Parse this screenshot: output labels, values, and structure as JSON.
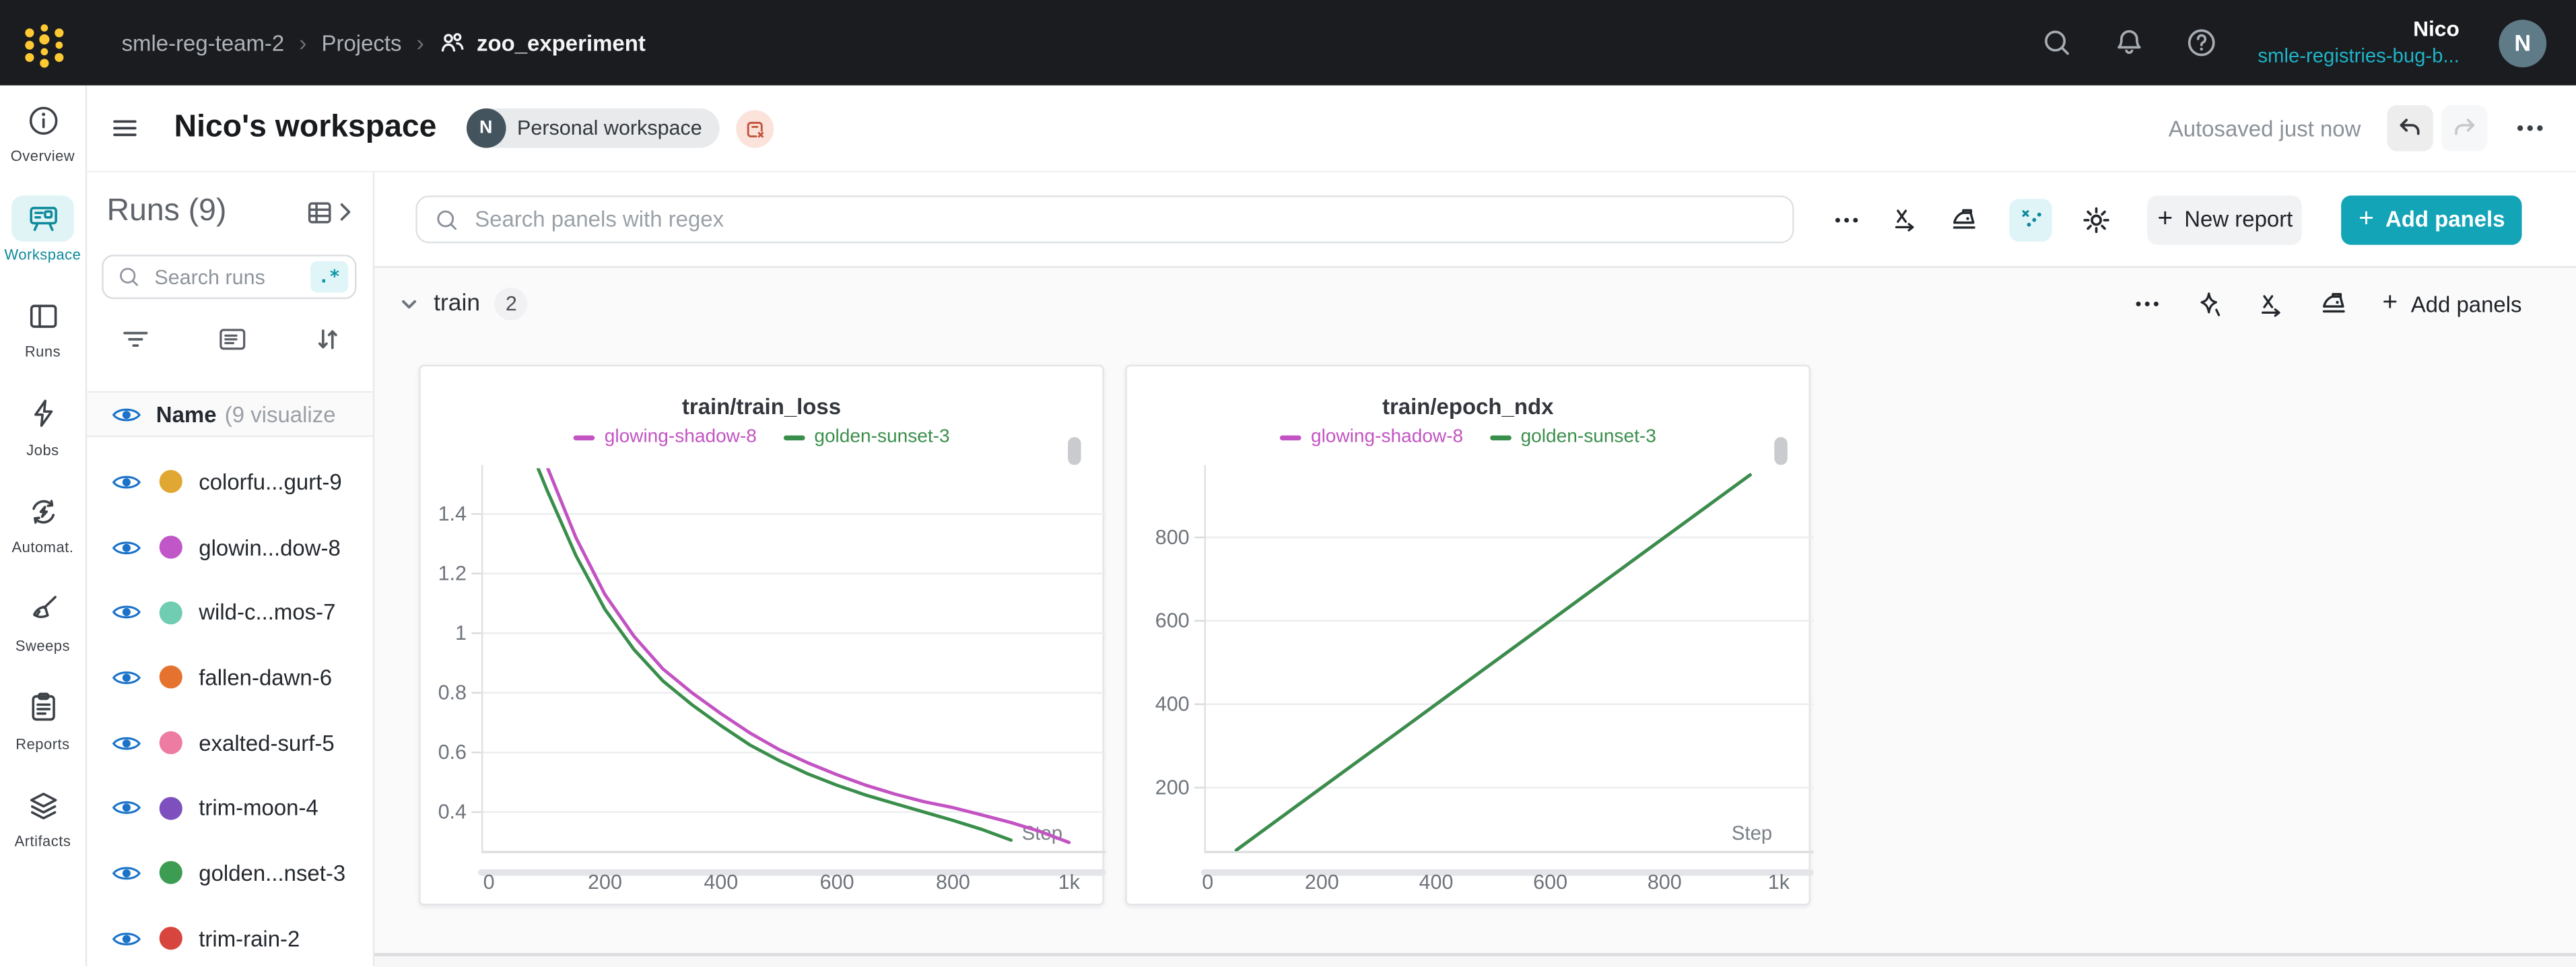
{
  "topbar": {
    "breadcrumb": [
      "smle-reg-team-2",
      "Projects",
      "zoo_experiment"
    ],
    "separator": "›",
    "icons": [
      "search-icon",
      "bell-icon",
      "help-icon"
    ],
    "user_name": "Nico",
    "user_org": "smle-registries-bug-b...",
    "avatar_initial": "N"
  },
  "header": {
    "title": "Nico's workspace",
    "badge_initial": "N",
    "badge_label": "Personal workspace",
    "clear_icon": "remove-panel-icon",
    "autosave": "Autosaved just now",
    "history_icons": [
      "undo-icon",
      "redo-icon",
      "overflow-menu-icon"
    ]
  },
  "sidebar": {
    "items": [
      {
        "label": "Overview",
        "icon": "info-icon",
        "active": false
      },
      {
        "label": "Workspace",
        "icon": "workspace-icon",
        "active": true
      },
      {
        "label": "Runs",
        "icon": "table-icon",
        "active": false
      },
      {
        "label": "Jobs",
        "icon": "zap-icon",
        "active": false
      },
      {
        "label": "Automat.",
        "icon": "automations-icon",
        "active": false
      },
      {
        "label": "Sweeps",
        "icon": "broom-icon",
        "active": false
      },
      {
        "label": "Reports",
        "icon": "clipboard-icon",
        "active": false
      },
      {
        "label": "Artifacts",
        "icon": "layers-icon",
        "active": false
      }
    ]
  },
  "runs_panel": {
    "title": "Runs (9)",
    "expand_icon": "runs-table-expand-icon",
    "search_placeholder": "Search runs",
    "regex_chip": ".*",
    "tool_icons": [
      "filter-icon",
      "list-details-icon",
      "sort-icon"
    ],
    "header_name": "Name",
    "header_suffix": "(9 visualize",
    "runs": [
      {
        "name": "colorfu...gurt-9",
        "color": "#e1a733"
      },
      {
        "name": "glowin...dow-8",
        "color": "#c156c9"
      },
      {
        "name": "wild-c...mos-7",
        "color": "#70cdb1"
      },
      {
        "name": "fallen-dawn-6",
        "color": "#e5722e"
      },
      {
        "name": "exalted-surf-5",
        "color": "#ee7ca2"
      },
      {
        "name": "trim-moon-4",
        "color": "#7d50be"
      },
      {
        "name": "golden...nset-3",
        "color": "#3c9d52"
      },
      {
        "name": "trim-rain-2",
        "color": "#d8453e"
      }
    ]
  },
  "toolbar": {
    "search_placeholder": "Search panels with regex",
    "icons": [
      "overflow-menu-icon",
      "x-axis-icon",
      "smoothing-iron-icon",
      "outliers-icon",
      "settings-gear-icon"
    ],
    "plus": "+",
    "new_report": "New report",
    "add_panels": "Add panels"
  },
  "section": {
    "name": "train",
    "count": "2",
    "icons": [
      "overflow-menu-icon",
      "sparkle-icon",
      "x-axis-icon",
      "smoothing-iron-icon"
    ],
    "plus": "+",
    "add_panels": "Add panels"
  },
  "chart_data": [
    {
      "type": "line",
      "title": "train/train_loss",
      "xlabel": "Step",
      "legend_position": "top",
      "grid": true,
      "xlim": [
        -13,
        1049
      ],
      "ylim": [
        0.269,
        1.553
      ],
      "xticks": [
        {
          "v": 0,
          "label": "0"
        },
        {
          "v": 200,
          "label": "200"
        },
        {
          "v": 400,
          "label": "400"
        },
        {
          "v": 600,
          "label": "600"
        },
        {
          "v": 800,
          "label": "800"
        },
        {
          "v": 1000,
          "label": "1k"
        }
      ],
      "yticks": [
        {
          "v": 0.4,
          "label": "0.4"
        },
        {
          "v": 0.6,
          "label": "0.6"
        },
        {
          "v": 0.8,
          "label": "0.8"
        },
        {
          "v": 1.0,
          "label": "1"
        },
        {
          "v": 1.2,
          "label": "1.2"
        },
        {
          "v": 1.4,
          "label": "1.4"
        }
      ],
      "series": [
        {
          "name": "glowing-shadow-8",
          "color": "#c353c3",
          "x": [
            50,
            100,
            150,
            200,
            250,
            300,
            350,
            400,
            450,
            500,
            550,
            600,
            650,
            700,
            750,
            800,
            850,
            900,
            950,
            1000
          ],
          "values": [
            1.78,
            1.56,
            1.32,
            1.13,
            0.99,
            0.88,
            0.8,
            0.73,
            0.665,
            0.61,
            0.565,
            0.525,
            0.49,
            0.46,
            0.435,
            0.415,
            0.39,
            0.365,
            0.335,
            0.298
          ]
        },
        {
          "name": "golden-sunset-3",
          "color": "#3a8e4b",
          "x": [
            50,
            100,
            150,
            200,
            250,
            300,
            350,
            400,
            450,
            500,
            550,
            600,
            650,
            700,
            750,
            800,
            850,
            900
          ],
          "values": [
            1.72,
            1.48,
            1.26,
            1.08,
            0.945,
            0.84,
            0.76,
            0.69,
            0.625,
            0.573,
            0.528,
            0.49,
            0.457,
            0.428,
            0.4,
            0.372,
            0.342,
            0.306
          ]
        }
      ]
    },
    {
      "type": "line",
      "title": "train/epoch_ndx",
      "xlabel": "Step",
      "legend_position": "top",
      "grid": true,
      "xlim": [
        -6,
        1044
      ],
      "ylim": [
        47.7,
        965.6
      ],
      "xticks": [
        {
          "v": 0,
          "label": "0"
        },
        {
          "v": 200,
          "label": "200"
        },
        {
          "v": 400,
          "label": "400"
        },
        {
          "v": 600,
          "label": "600"
        },
        {
          "v": 800,
          "label": "800"
        },
        {
          "v": 1000,
          "label": "1k"
        }
      ],
      "yticks": [
        {
          "v": 200,
          "label": "200"
        },
        {
          "v": 400,
          "label": "400"
        },
        {
          "v": 600,
          "label": "600"
        },
        {
          "v": 800,
          "label": "800"
        }
      ],
      "series": [
        {
          "name": "glowing-shadow-8",
          "color": "#c353c3",
          "x": [
            50,
            150,
            250,
            350,
            450,
            550,
            650,
            750,
            850,
            950
          ],
          "values": [
            50,
            150,
            250,
            350,
            450,
            550,
            650,
            750,
            850,
            950
          ]
        },
        {
          "name": "golden-sunset-3",
          "color": "#3a8e4b",
          "x": [
            50,
            150,
            250,
            350,
            450,
            550,
            650,
            750,
            850,
            950
          ],
          "values": [
            50,
            150,
            250,
            350,
            450,
            550,
            650,
            750,
            850,
            950
          ]
        }
      ]
    }
  ]
}
